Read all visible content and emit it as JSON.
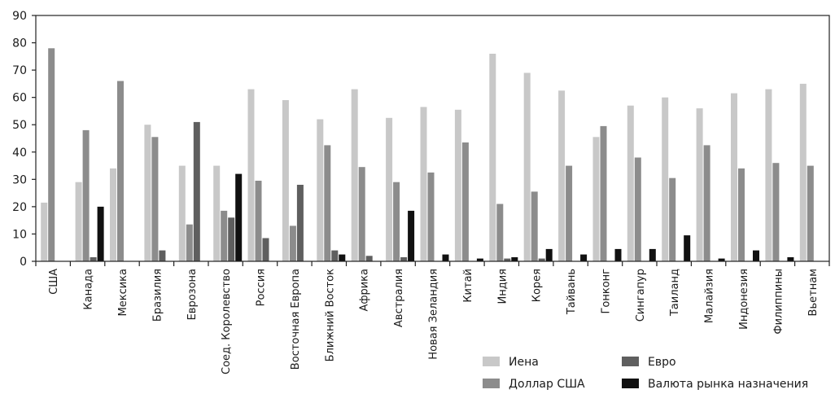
{
  "chart_data": {
    "type": "bar",
    "categories": [
      "США",
      "Канада",
      "Мексика",
      "Бразилия",
      "Еврозона",
      "Соед. Королевство",
      "Россия",
      "Восточная Европа",
      "Ближний Восток",
      "Африка",
      "Австралия",
      "Новая Зеландия",
      "Китай",
      "Индия",
      "Корея",
      "Тайвань",
      "Гонконг",
      "Сингапур",
      "Таиланд",
      "Малайзия",
      "Индонезия",
      "Филиппины",
      "Вьетнам"
    ],
    "series": [
      {
        "name": "Иена",
        "color": "#c8c8c8",
        "values": [
          21.5,
          29,
          34,
          50,
          35,
          35,
          63,
          59,
          52,
          63,
          52.5,
          56.5,
          55.5,
          76,
          69,
          62.5,
          45.5,
          57,
          60,
          56,
          61.5,
          63,
          65
        ]
      },
      {
        "name": "Доллар США",
        "color": "#8c8c8c",
        "values": [
          78,
          48,
          66,
          45.5,
          13.5,
          18.5,
          29.5,
          13,
          42.5,
          34.5,
          29,
          32.5,
          43.5,
          21,
          25.5,
          35,
          49.5,
          38,
          30.5,
          42.5,
          34,
          36,
          35
        ]
      },
      {
        "name": "Евро",
        "color": "#5f5f5f",
        "values": [
          0,
          1.5,
          0,
          4,
          51,
          16,
          8.5,
          28,
          4,
          2,
          1.5,
          0,
          0,
          1,
          1,
          0,
          0,
          0,
          0,
          0,
          0,
          0,
          0
        ]
      },
      {
        "name": "Валюта рынка назначения",
        "color": "#111111",
        "values": [
          0,
          20,
          0,
          0,
          0,
          32,
          0,
          0,
          2.5,
          0,
          18.5,
          2.5,
          1,
          1.5,
          4.5,
          2.5,
          4.5,
          4.5,
          9.5,
          1,
          4,
          1.5,
          0
        ]
      }
    ],
    "ylim": [
      0,
      90
    ],
    "yticks": [
      "0",
      "10",
      "20",
      "30",
      "40",
      "50",
      "60",
      "70",
      "80",
      "90"
    ],
    "title": "",
    "xlabel": "",
    "ylabel": "",
    "grid": false,
    "legend_position": "bottom-right"
  }
}
